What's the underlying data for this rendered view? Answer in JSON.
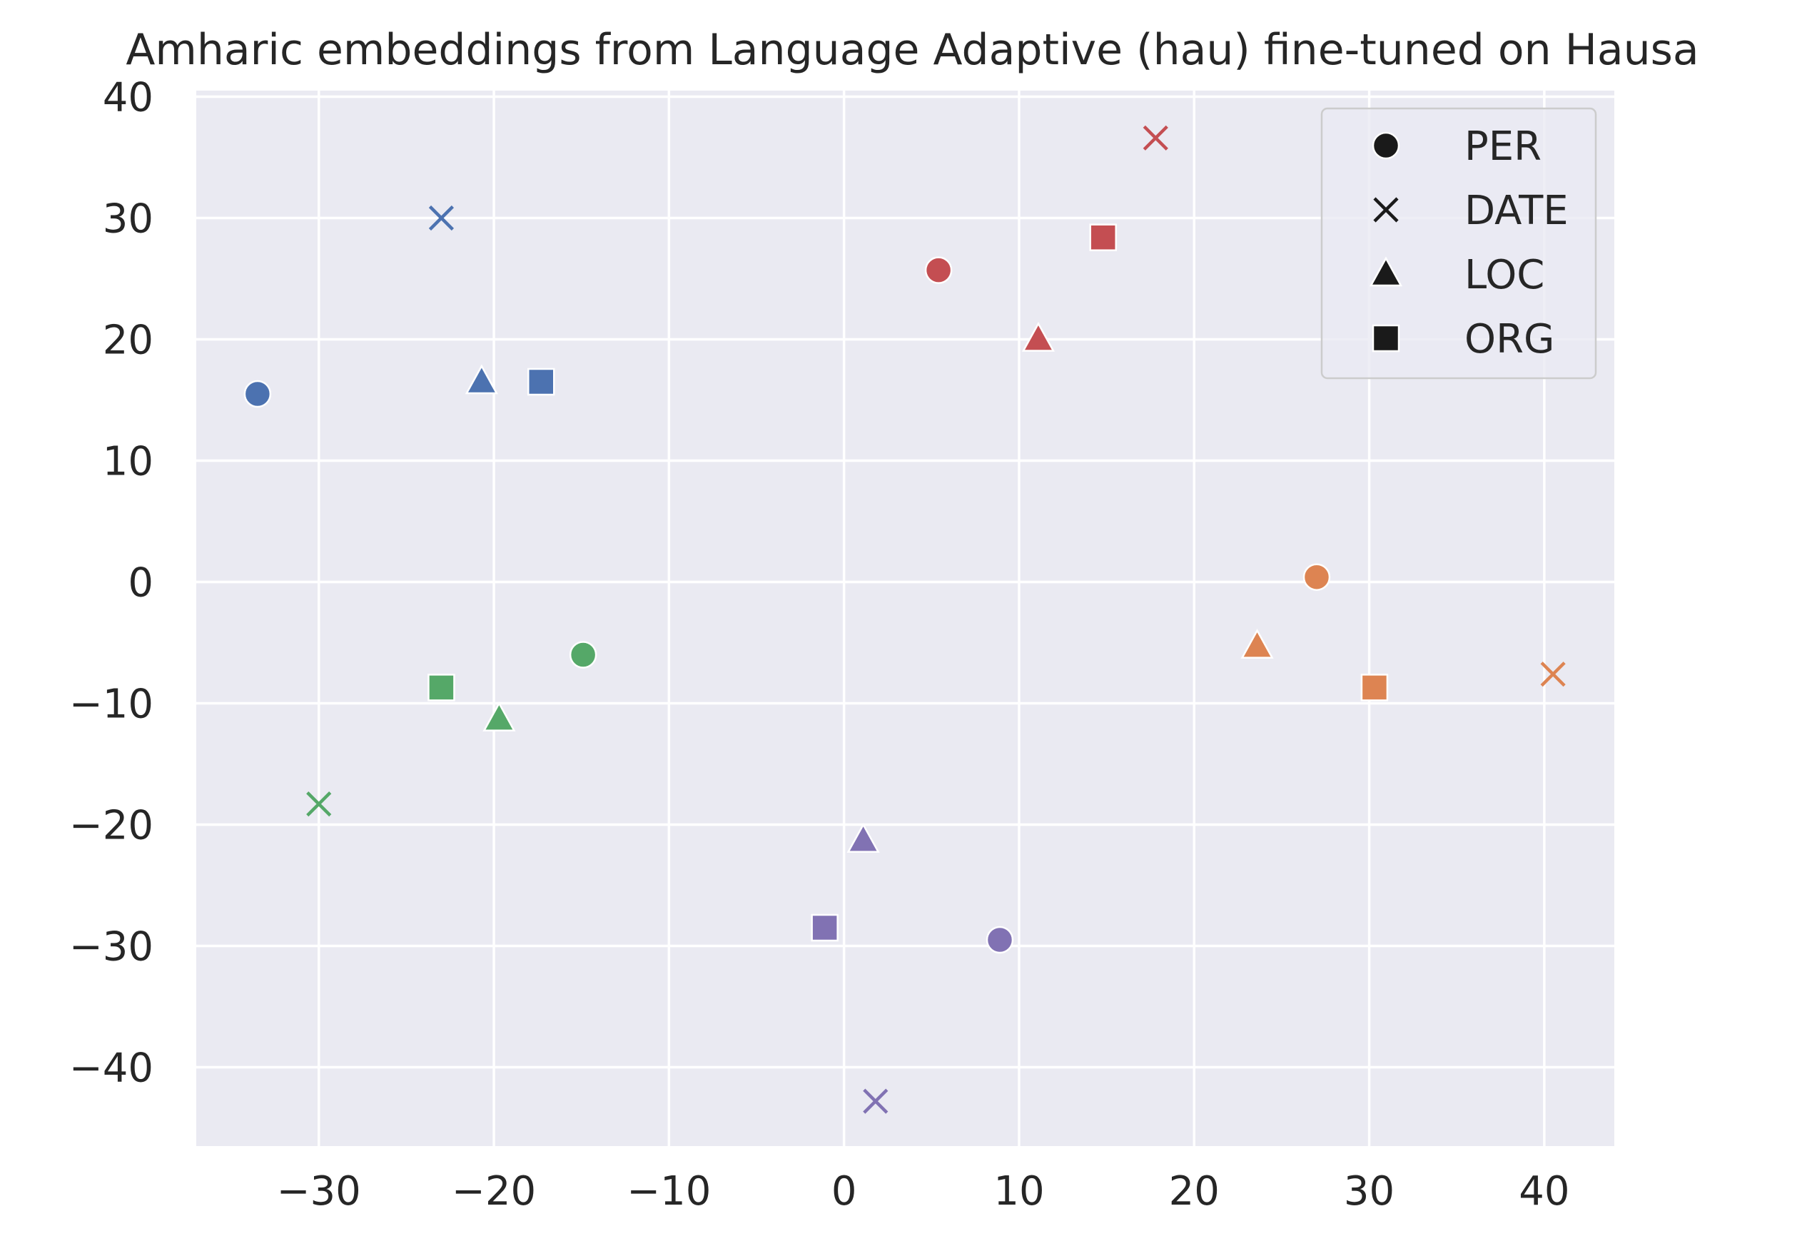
{
  "chart_data": {
    "type": "scatter",
    "title": "Amharic embeddings from Language Adaptive (hau) fine-tuned on Hausa",
    "xlabel": "",
    "ylabel": "",
    "xlim": [
      -37,
      44
    ],
    "ylim": [
      -46.5,
      40.5
    ],
    "xticks": [
      -30,
      -20,
      -10,
      0,
      10,
      20,
      30,
      40
    ],
    "yticks": [
      -40,
      -30,
      -20,
      -10,
      0,
      10,
      20,
      30,
      40
    ],
    "xtick_labels": [
      "−30",
      "−20",
      "−10",
      "0",
      "10",
      "20",
      "30",
      "40"
    ],
    "ytick_labels": [
      "−40",
      "−30",
      "−20",
      "−10",
      "0",
      "10",
      "20",
      "30",
      "40"
    ],
    "grid": true,
    "legend_position": "upper right",
    "legend": [
      {
        "label": "PER",
        "marker": "circle"
      },
      {
        "label": "DATE",
        "marker": "x"
      },
      {
        "label": "LOC",
        "marker": "triangle"
      },
      {
        "label": "ORG",
        "marker": "square"
      }
    ],
    "points": [
      {
        "x": -33.5,
        "y": 15.5,
        "marker": "circle",
        "color": "#4c72b0"
      },
      {
        "x": -23.0,
        "y": 30.0,
        "marker": "x",
        "color": "#4c72b0"
      },
      {
        "x": -20.7,
        "y": 16.5,
        "marker": "triangle",
        "color": "#4c72b0"
      },
      {
        "x": -17.3,
        "y": 16.5,
        "marker": "square",
        "color": "#4c72b0"
      },
      {
        "x": 5.4,
        "y": 25.7,
        "marker": "circle",
        "color": "#c44e52"
      },
      {
        "x": 17.8,
        "y": 36.6,
        "marker": "x",
        "color": "#c44e52"
      },
      {
        "x": 11.1,
        "y": 20.0,
        "marker": "triangle",
        "color": "#c44e52"
      },
      {
        "x": 14.8,
        "y": 28.4,
        "marker": "square",
        "color": "#c44e52"
      },
      {
        "x": 27.0,
        "y": 0.4,
        "marker": "circle",
        "color": "#dd8452"
      },
      {
        "x": 40.5,
        "y": -7.6,
        "marker": "x",
        "color": "#dd8452"
      },
      {
        "x": 23.6,
        "y": -5.3,
        "marker": "triangle",
        "color": "#dd8452"
      },
      {
        "x": 30.3,
        "y": -8.7,
        "marker": "square",
        "color": "#dd8452"
      },
      {
        "x": -14.9,
        "y": -6.0,
        "marker": "circle",
        "color": "#55a868"
      },
      {
        "x": -30.0,
        "y": -18.3,
        "marker": "x",
        "color": "#55a868"
      },
      {
        "x": -19.7,
        "y": -11.3,
        "marker": "triangle",
        "color": "#55a868"
      },
      {
        "x": -23.0,
        "y": -8.7,
        "marker": "square",
        "color": "#55a868"
      },
      {
        "x": 8.9,
        "y": -29.5,
        "marker": "circle",
        "color": "#8172b3"
      },
      {
        "x": 1.8,
        "y": -42.8,
        "marker": "x",
        "color": "#8172b3"
      },
      {
        "x": 1.1,
        "y": -21.3,
        "marker": "triangle",
        "color": "#8172b3"
      },
      {
        "x": -1.1,
        "y": -28.5,
        "marker": "square",
        "color": "#8172b3"
      }
    ],
    "colors": {
      "plot_background": "#eaeaf2",
      "grid": "#ffffff",
      "text": "#262626",
      "legend_marker": "#1a1a1a"
    }
  }
}
